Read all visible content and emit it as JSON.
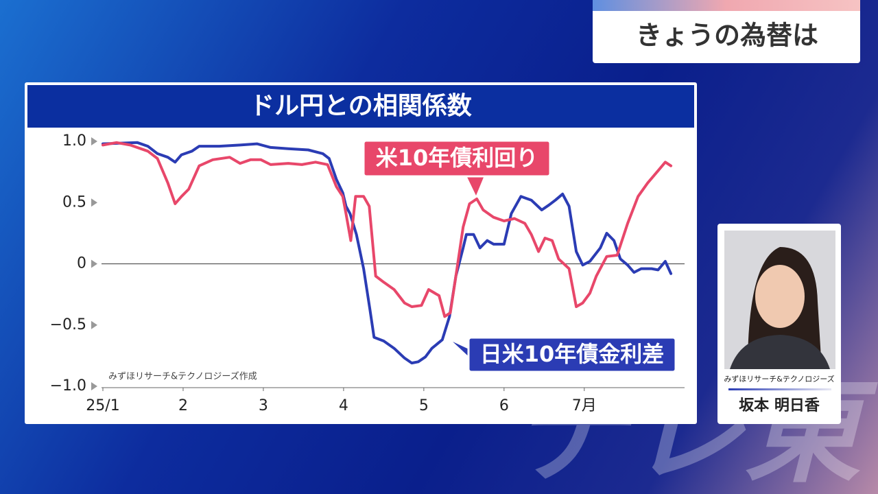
{
  "header": {
    "title": "きょうの為替は"
  },
  "chart_data": {
    "type": "line",
    "title": "ドル円との相関係数",
    "source": "みずほリサーチ&テクノロジーズ作成",
    "xlim": [
      1,
      8.25
    ],
    "xticks": [
      {
        "value": 1,
        "label": "25/1"
      },
      2,
      3,
      4,
      5,
      6,
      {
        "value": 7,
        "label": "7月"
      }
    ],
    "ylim": [
      -1,
      1
    ],
    "yticks": [
      {
        "value": 1,
        "label": "1.0"
      },
      0.5,
      0,
      {
        "value": -0.5,
        "label": "−0.5"
      },
      {
        "value": -1,
        "label": "−1.0"
      }
    ],
    "zero_line": true,
    "series": [
      {
        "name": "日米10年債金利差",
        "color": "#2b3cb4",
        "x": [
          1.0,
          1.43,
          1.56,
          1.68,
          1.81,
          1.9,
          1.98,
          2.11,
          2.2,
          2.45,
          2.71,
          2.92,
          3.09,
          3.31,
          3.56,
          3.74,
          3.82,
          3.91,
          3.99,
          4.03,
          4.08,
          4.16,
          4.25,
          4.33,
          4.38,
          4.5,
          4.63,
          4.76,
          4.85,
          4.93,
          5.02,
          5.1,
          5.23,
          5.32,
          5.4,
          5.49,
          5.53,
          5.62,
          5.7,
          5.79,
          5.87,
          6.0,
          6.09,
          6.21,
          6.34,
          6.47,
          6.56,
          6.64,
          6.73,
          6.81,
          6.9,
          6.98,
          7.07,
          7.2,
          7.28,
          7.37,
          7.45,
          7.54,
          7.62,
          7.71,
          7.84,
          7.92,
          8.01,
          8.08
        ],
        "values": [
          0.98,
          0.99,
          0.96,
          0.9,
          0.87,
          0.83,
          0.89,
          0.92,
          0.96,
          0.96,
          0.97,
          0.98,
          0.95,
          0.94,
          0.93,
          0.9,
          0.86,
          0.69,
          0.58,
          0.47,
          0.41,
          0.24,
          -0.04,
          -0.38,
          -0.6,
          -0.63,
          -0.69,
          -0.77,
          -0.81,
          -0.8,
          -0.76,
          -0.69,
          -0.62,
          -0.43,
          -0.1,
          0.13,
          0.24,
          0.24,
          0.13,
          0.19,
          0.16,
          0.16,
          0.41,
          0.55,
          0.52,
          0.44,
          0.48,
          0.52,
          0.57,
          0.47,
          0.1,
          -0.01,
          0.02,
          0.13,
          0.25,
          0.19,
          0.04,
          -0.01,
          -0.07,
          -0.04,
          -0.04,
          -0.05,
          0.02,
          -0.08
        ]
      },
      {
        "name": "米10年債利回り",
        "color": "#e8476a",
        "x": [
          1.0,
          1.17,
          1.34,
          1.56,
          1.68,
          1.81,
          1.9,
          1.98,
          2.07,
          2.2,
          2.37,
          2.58,
          2.71,
          2.84,
          2.97,
          3.09,
          3.31,
          3.48,
          3.65,
          3.8,
          3.91,
          3.99,
          4.03,
          4.09,
          4.15,
          4.25,
          4.32,
          4.4,
          4.5,
          4.63,
          4.76,
          4.85,
          4.97,
          5.06,
          5.19,
          5.26,
          5.33,
          5.4,
          5.49,
          5.57,
          5.66,
          5.74,
          5.87,
          6.0,
          6.13,
          6.26,
          6.34,
          6.43,
          6.51,
          6.6,
          6.68,
          6.81,
          6.9,
          6.98,
          7.07,
          7.15,
          7.28,
          7.41,
          7.54,
          7.67,
          7.79,
          7.92,
          8.01,
          8.08
        ],
        "values": [
          0.97,
          0.99,
          0.97,
          0.92,
          0.86,
          0.66,
          0.49,
          0.55,
          0.61,
          0.8,
          0.85,
          0.87,
          0.82,
          0.85,
          0.85,
          0.81,
          0.82,
          0.81,
          0.83,
          0.81,
          0.63,
          0.55,
          0.41,
          0.19,
          0.55,
          0.55,
          0.47,
          -0.1,
          -0.15,
          -0.21,
          -0.32,
          -0.35,
          -0.34,
          -0.21,
          -0.26,
          -0.43,
          -0.4,
          -0.1,
          0.3,
          0.49,
          0.53,
          0.44,
          0.38,
          0.35,
          0.37,
          0.33,
          0.24,
          0.1,
          0.21,
          0.19,
          0.04,
          -0.04,
          -0.35,
          -0.32,
          -0.24,
          -0.1,
          0.06,
          0.07,
          0.33,
          0.55,
          0.66,
          0.76,
          0.83,
          0.8
        ]
      }
    ]
  },
  "presenter": {
    "affiliation": "みずほリサーチ&テクノロジーズ",
    "name": "坂本 明日香"
  },
  "logo": "テレ東"
}
